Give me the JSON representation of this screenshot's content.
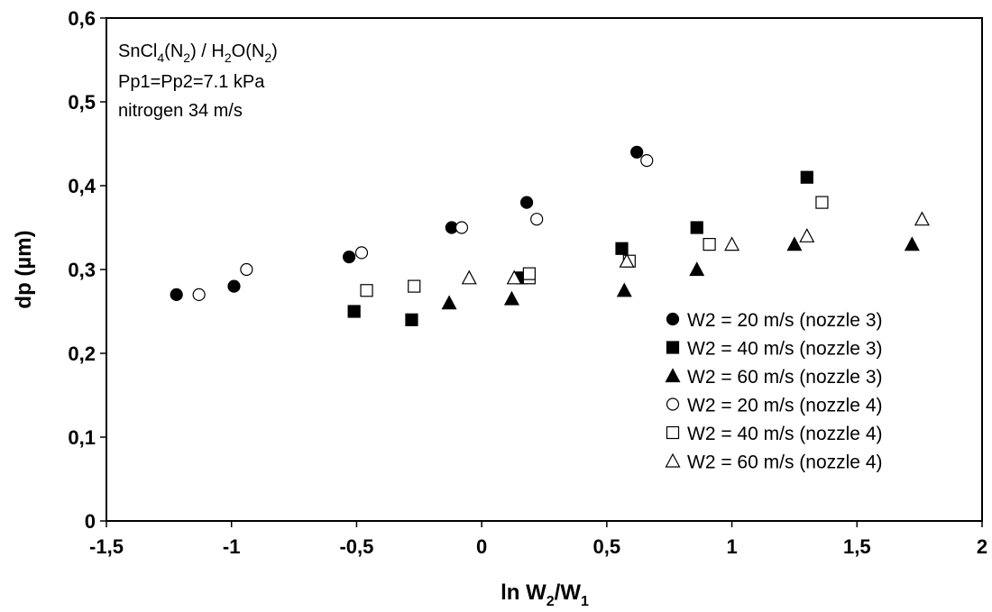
{
  "chart_data": {
    "type": "scatter",
    "xlim": [
      -1.5,
      2
    ],
    "ylim": [
      0,
      0.6
    ],
    "xticks": [
      "-1,5",
      "-1",
      "-0,5",
      "0",
      "0,5",
      "1",
      "1,5",
      "2"
    ],
    "yticks": [
      "0",
      "0,1",
      "0,2",
      "0,3",
      "0,4",
      "0,5",
      "0,6"
    ],
    "xlabel": "ln W2/W1",
    "xlabel_parts": {
      "a": "ln W",
      "sub1": "2",
      "b": "/W",
      "sub2": "1"
    },
    "ylabel": "dp (µm)",
    "grid": false,
    "legend_position": "bottom-right",
    "annotations": {
      "line1": {
        "a": "SnCl",
        "sub1": "4",
        "b": "(N",
        "sub2": "2",
        "c": ") / H",
        "sub3": "2",
        "d": "O(N",
        "sub4": "2",
        "e": ")"
      },
      "line2": "Pp1=Pp2=7.1 kPa",
      "line3": "nitrogen 34 m/s"
    },
    "series": [
      {
        "name": "W2 = 20 m/s (nozzle 3)",
        "marker": "circle",
        "filled": true,
        "points": [
          [
            -1.22,
            0.27
          ],
          [
            -0.99,
            0.28
          ],
          [
            -0.53,
            0.315
          ],
          [
            -0.12,
            0.35
          ],
          [
            0.18,
            0.38
          ],
          [
            0.62,
            0.44
          ]
        ]
      },
      {
        "name": "W2 = 40 m/s (nozzle 3)",
        "marker": "square",
        "filled": true,
        "points": [
          [
            -0.51,
            0.25
          ],
          [
            -0.28,
            0.24
          ],
          [
            0.16,
            0.29
          ],
          [
            0.56,
            0.325
          ],
          [
            0.86,
            0.35
          ],
          [
            1.3,
            0.41
          ]
        ]
      },
      {
        "name": "W2 = 60 m/s (nozzle 3)",
        "marker": "triangle",
        "filled": true,
        "points": [
          [
            -0.13,
            0.26
          ],
          [
            0.12,
            0.265
          ],
          [
            0.57,
            0.275
          ],
          [
            0.86,
            0.3
          ],
          [
            1.25,
            0.33
          ],
          [
            1.72,
            0.33
          ]
        ]
      },
      {
        "name": "W2 = 20 m/s (nozzle 4)",
        "marker": "circle",
        "filled": false,
        "points": [
          [
            -1.13,
            0.27
          ],
          [
            -0.94,
            0.3
          ],
          [
            -0.48,
            0.32
          ],
          [
            -0.08,
            0.35
          ],
          [
            0.22,
            0.36
          ],
          [
            0.66,
            0.43
          ]
        ]
      },
      {
        "name": "W2 = 40 m/s (nozzle 4)",
        "marker": "square",
        "filled": false,
        "points": [
          [
            -0.46,
            0.275
          ],
          [
            -0.27,
            0.28
          ],
          [
            0.19,
            0.29
          ],
          [
            0.19,
            0.295
          ],
          [
            0.59,
            0.31
          ],
          [
            0.91,
            0.33
          ],
          [
            1.36,
            0.38
          ]
        ]
      },
      {
        "name": "W2 = 60 m/s (nozzle 4)",
        "marker": "triangle",
        "filled": false,
        "points": [
          [
            -0.05,
            0.29
          ],
          [
            0.13,
            0.29
          ],
          [
            0.58,
            0.31
          ],
          [
            1.0,
            0.33
          ],
          [
            1.3,
            0.34
          ],
          [
            1.76,
            0.36
          ]
        ]
      }
    ]
  }
}
